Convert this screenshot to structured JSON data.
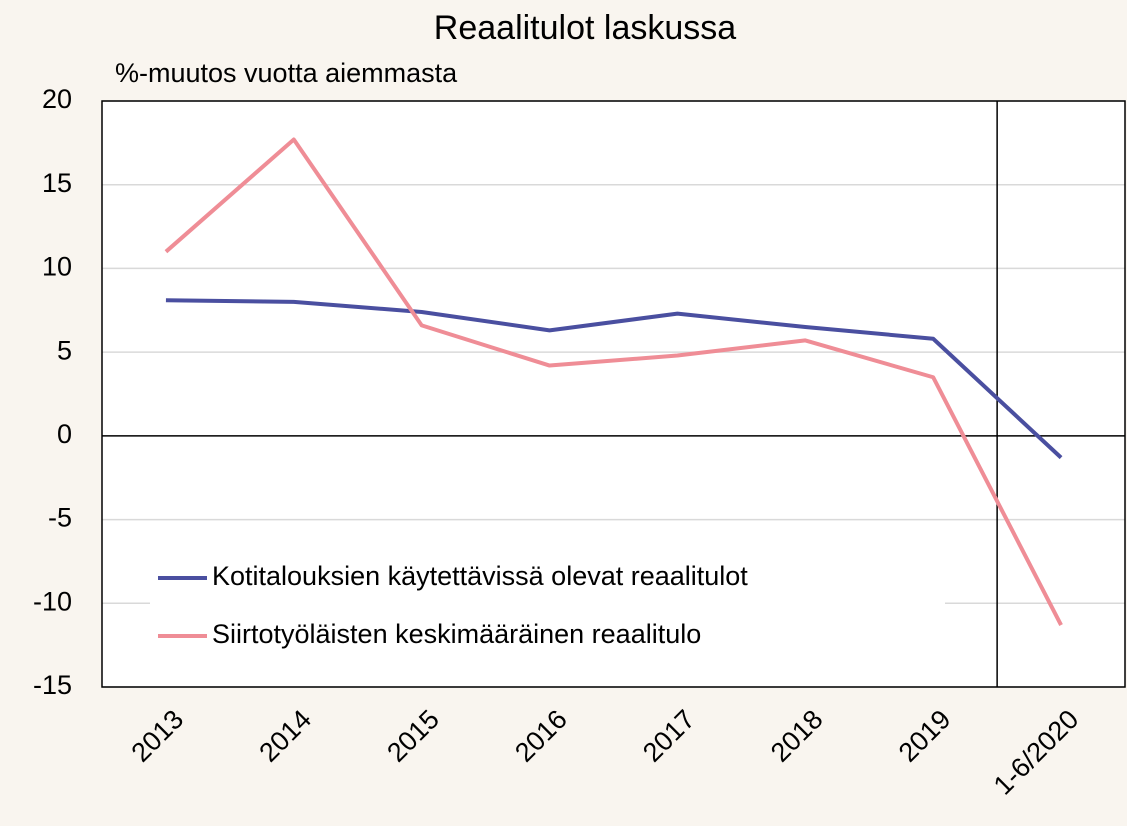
{
  "chart_data": {
    "type": "line",
    "title": "Reaalitulot laskussa",
    "subtitle": "%-muutos vuotta aiemmasta",
    "categories": [
      "2013",
      "2014",
      "2015",
      "2016",
      "2017",
      "2018",
      "2019",
      "1-6/2020"
    ],
    "series": [
      {
        "name": "Kotitalouksien käytettävissä olevat reaalitulot",
        "color": "#4a4fa0",
        "values": [
          8.1,
          8.0,
          7.4,
          6.3,
          7.3,
          6.5,
          5.8,
          -1.3
        ]
      },
      {
        "name": "Siirtotyöläisten keskimääräinen reaalitulo",
        "color": "#ef8d96",
        "values": [
          11.0,
          17.7,
          6.6,
          4.2,
          4.8,
          5.7,
          3.5,
          -11.3
        ]
      }
    ],
    "ylim": [
      -15,
      20
    ],
    "yticks": [
      -15,
      -10,
      -5,
      0,
      5,
      10,
      15,
      20
    ],
    "grid": true,
    "legend": "lower left"
  }
}
